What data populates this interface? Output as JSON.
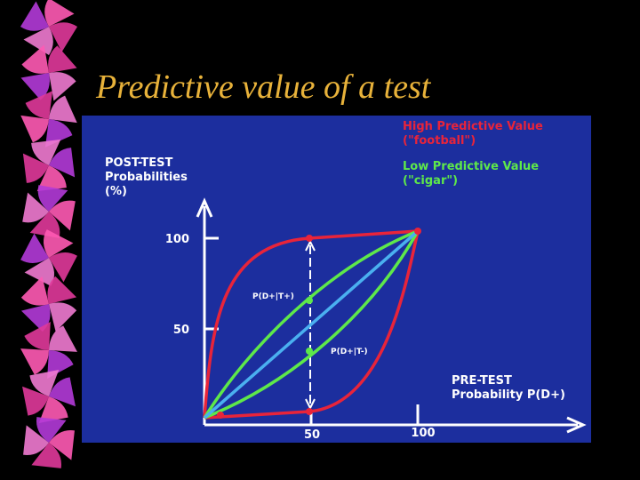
{
  "slide": {
    "title": "Predictive value of a test",
    "diagram": {
      "y_axis_label": [
        "POST-TEST",
        "Probabilities",
        "(%)"
      ],
      "x_axis_label": [
        "PRE-TEST",
        "Probability P(D+)"
      ],
      "y_ticks": [
        100,
        50
      ],
      "x_ticks": [
        50,
        100
      ],
      "legend": [
        {
          "lines": [
            "High Predictive Value",
            "(\"football\")"
          ],
          "color": "#e8243a"
        },
        {
          "lines": [
            "Low Predictive Value",
            "(\"cigar\")"
          ],
          "color": "#5ee84a"
        }
      ],
      "annotations": [
        "P(D+|T+)",
        "P(D+|T-)"
      ]
    }
  }
}
